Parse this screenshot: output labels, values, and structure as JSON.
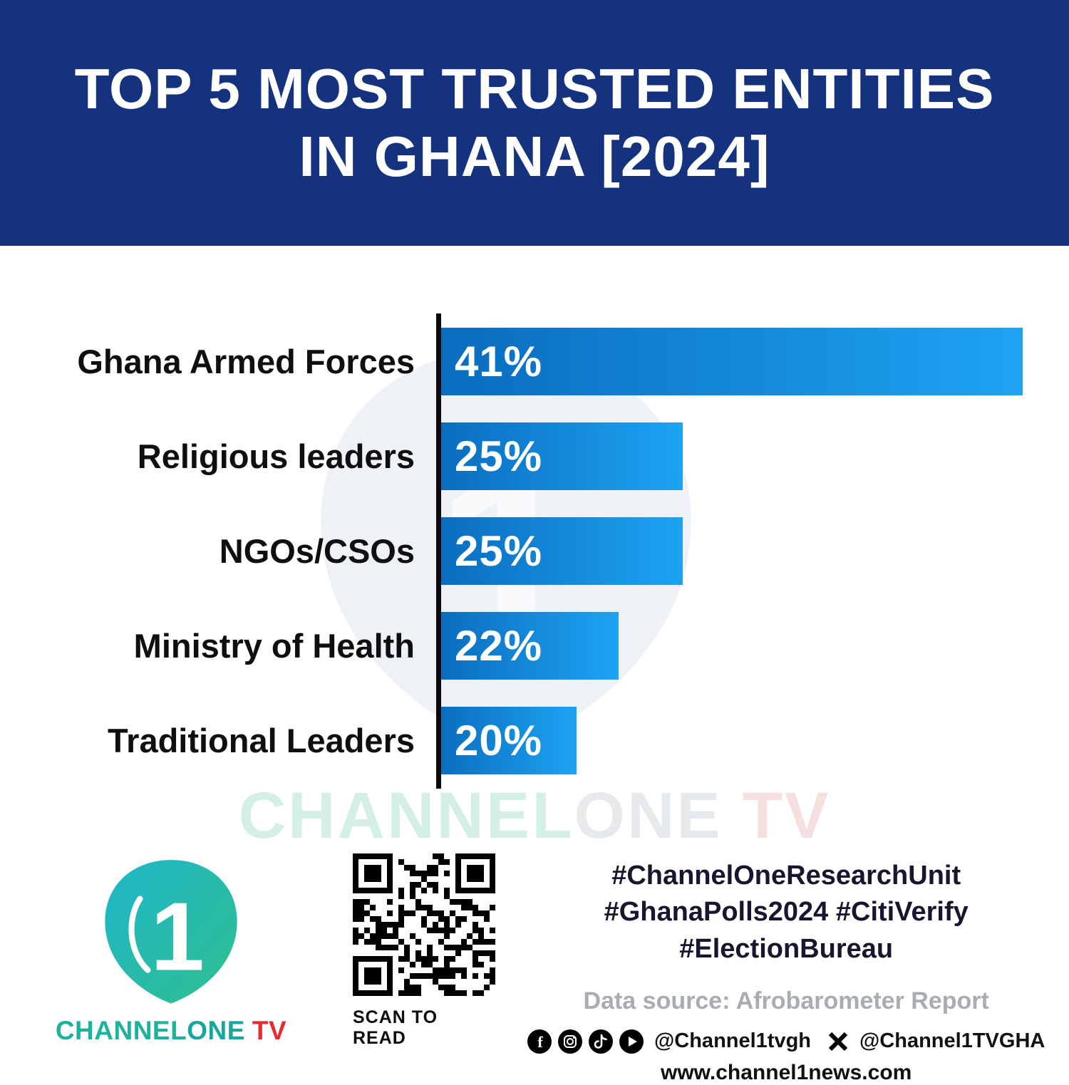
{
  "header": {
    "title_line1": "TOP 5 MOST TRUSTED ENTITIES",
    "title_line2": "IN GHANA [2024]"
  },
  "chart_data": {
    "type": "bar",
    "orientation": "horizontal",
    "title": "Top 5 Most Trusted Entities in Ghana [2024]",
    "categories": [
      "Ghana Armed Forces",
      "Religious leaders",
      "NGOs/CSOs",
      "Ministry of Health",
      "Traditional Leaders"
    ],
    "values": [
      41,
      25,
      25,
      22,
      20
    ],
    "value_labels": [
      "41%",
      "25%",
      "25%",
      "22%",
      "20%"
    ],
    "unit": "%",
    "grid": false,
    "legend": false,
    "axis_color": "#0b0b0b",
    "bar_gradient": [
      "#0a6cbe",
      "#1ea3f3"
    ],
    "display_scale_xlim": [
      13.4,
      41
    ]
  },
  "watermark": {
    "part1": "CHANNEL",
    "part2": "ONE",
    "part3": "TV"
  },
  "footer": {
    "brand": {
      "channel": "CHANNEL",
      "one": "ONE",
      "tv": "TV"
    },
    "qr_caption": "SCAN TO READ",
    "hashtags": [
      "#ChannelOneResearchUnit",
      "#GhanaPolls2024 #CitiVerify",
      "#ElectionBureau"
    ],
    "data_source": "Data source: Afrobarometer Report",
    "social": {
      "icons": [
        "facebook-icon",
        "instagram-icon",
        "tiktok-icon",
        "youtube-icon",
        "x-icon"
      ],
      "handle1": "@Channel1tvgh",
      "handle2": "@Channel1TVGHA"
    },
    "website": "www.channel1news.com"
  },
  "colors": {
    "header_bg": "#15327f",
    "accent_teal": "#1cb39c",
    "accent_red": "#e52a30"
  }
}
